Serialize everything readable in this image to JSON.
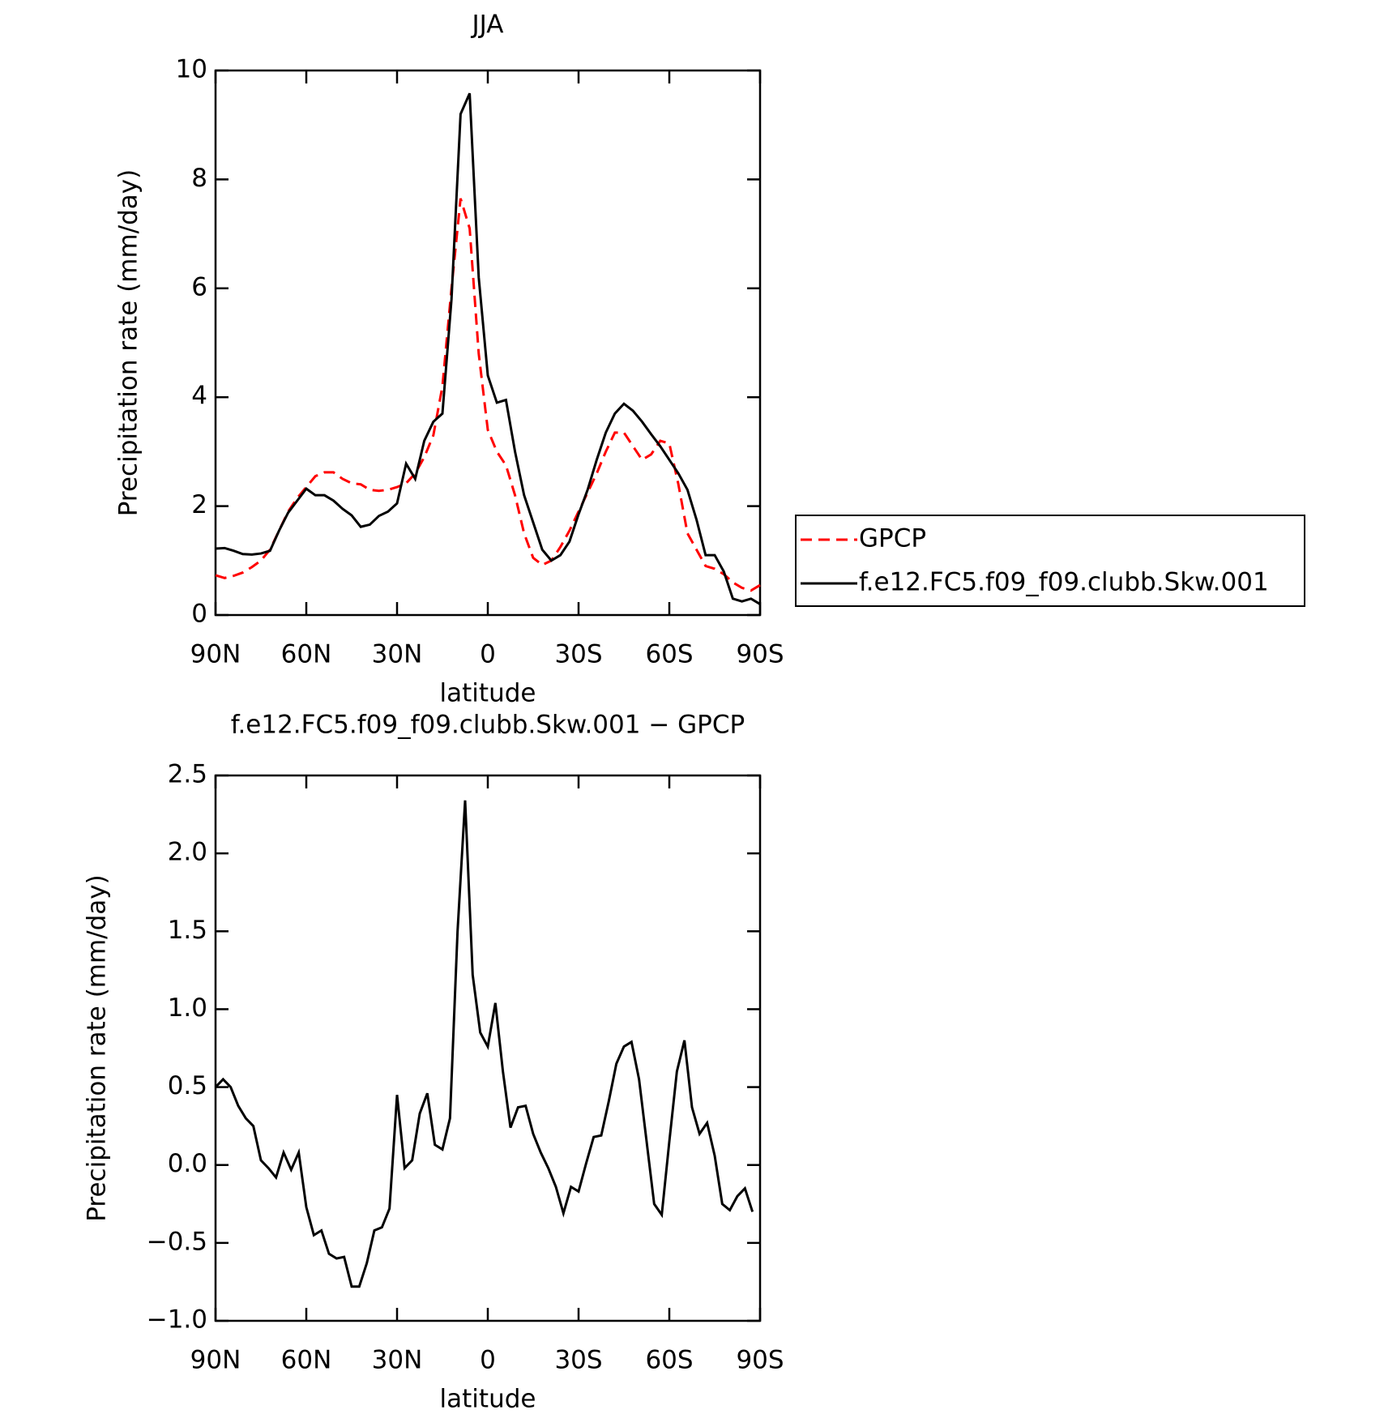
{
  "chart_data": [
    {
      "type": "line",
      "title": "JJA",
      "xlabel": "latitude",
      "ylabel": "Precipitation rate (mm/day)",
      "x": [
        90,
        87,
        84,
        81,
        78,
        75,
        72,
        69,
        66,
        63,
        60,
        57,
        54,
        51,
        48,
        45,
        42,
        39,
        36,
        33,
        30,
        27,
        24,
        21,
        18,
        15,
        12,
        9,
        6,
        3,
        0,
        -3,
        -6,
        -9,
        -12,
        -15,
        -18,
        -21,
        -24,
        -27,
        -30,
        -33,
        -36,
        -39,
        -42,
        -45,
        -48,
        -51,
        -54,
        -57,
        -60,
        -63,
        -66,
        -69,
        -72,
        -75,
        -78,
        -81,
        -84,
        -87,
        -90
      ],
      "series": [
        {
          "name": "GPCP",
          "color": "#ff0000",
          "dash": "dashed",
          "values": [
            0.73,
            0.68,
            0.72,
            0.78,
            0.88,
            1.0,
            1.2,
            1.55,
            1.9,
            2.15,
            2.35,
            2.55,
            2.62,
            2.62,
            2.5,
            2.42,
            2.4,
            2.3,
            2.28,
            2.3,
            2.35,
            2.42,
            2.6,
            2.9,
            3.3,
            4.2,
            6.0,
            7.65,
            7.1,
            4.8,
            3.4,
            3.0,
            2.75,
            2.2,
            1.5,
            1.05,
            0.92,
            1.0,
            1.25,
            1.55,
            1.9,
            2.25,
            2.6,
            3.0,
            3.35,
            3.35,
            3.1,
            2.85,
            2.95,
            3.2,
            3.15,
            2.4,
            1.5,
            1.2,
            0.9,
            0.85,
            0.75,
            0.6,
            0.5,
            0.45,
            0.55
          ]
        },
        {
          "name": "f.e12.FC5.f09_f09.clubb.Skw.001",
          "color": "#000000",
          "dash": "solid",
          "values": [
            1.22,
            1.23,
            1.18,
            1.12,
            1.11,
            1.13,
            1.18,
            1.55,
            1.88,
            2.1,
            2.32,
            2.2,
            2.2,
            2.1,
            1.95,
            1.83,
            1.62,
            1.66,
            1.82,
            1.9,
            2.05,
            2.78,
            2.5,
            3.2,
            3.55,
            3.7,
            5.8,
            9.2,
            9.58,
            6.2,
            4.4,
            3.9,
            3.95,
            3.0,
            2.2,
            1.7,
            1.2,
            1.0,
            1.1,
            1.35,
            1.85,
            2.3,
            2.85,
            3.35,
            3.7,
            3.88,
            3.75,
            3.55,
            3.32,
            3.1,
            2.85,
            2.6,
            2.3,
            1.75,
            1.1,
            1.1,
            0.8,
            0.3,
            0.25,
            0.3,
            0.2
          ]
        }
      ],
      "xlim": [
        90,
        -90
      ],
      "xticks": [
        {
          "value": 90,
          "label": "90N"
        },
        {
          "value": 60,
          "label": "60N"
        },
        {
          "value": 30,
          "label": "30N"
        },
        0,
        {
          "value": -30,
          "label": "30S"
        },
        {
          "value": -60,
          "label": "60S"
        },
        {
          "value": -90,
          "label": "90S"
        }
      ],
      "ylim": [
        0,
        10
      ],
      "yticks": [
        0,
        2,
        4,
        6,
        8,
        10
      ],
      "legend": "right"
    },
    {
      "type": "line",
      "title": "f.e12.FC5.f09_f09.clubb.Skw.001 − GPCP",
      "xlabel": "latitude",
      "ylabel": "Precipitation rate (mm/day)",
      "x": [
        90,
        87.5,
        85,
        82.5,
        80,
        77.5,
        75,
        72.5,
        70,
        67.5,
        65,
        62.5,
        60,
        57.5,
        55,
        52.5,
        50,
        47.5,
        45,
        42.5,
        40,
        37.5,
        35,
        32.5,
        30,
        27.5,
        25,
        22.5,
        20,
        17.5,
        15,
        12.5,
        10,
        7.5,
        5,
        2.5,
        0,
        -2.5,
        -5,
        -7.5,
        -10,
        -12.5,
        -15,
        -17.5,
        -20,
        -22.5,
        -25,
        -27.5,
        -30,
        -32.5,
        -35,
        -37.5,
        -40,
        -42.5,
        -45,
        -47.5,
        -50,
        -52.5,
        -55,
        -57.5,
        -60,
        -62.5,
        -65,
        -67.5,
        -70,
        -72.5,
        -75,
        -77.5,
        -80,
        -82.5,
        -85,
        -87.5
      ],
      "series": [
        {
          "color": "#000000",
          "dash": "solid",
          "values": [
            0.5,
            0.55,
            0.5,
            0.38,
            0.3,
            0.25,
            0.03,
            -0.02,
            -0.08,
            0.08,
            -0.03,
            0.08,
            -0.27,
            -0.45,
            -0.42,
            -0.57,
            -0.6,
            -0.59,
            -0.78,
            -0.78,
            -0.63,
            -0.42,
            -0.4,
            -0.28,
            0.45,
            -0.02,
            0.03,
            0.33,
            0.46,
            0.13,
            0.1,
            0.3,
            1.5,
            2.34,
            1.22,
            0.85,
            0.76,
            1.04,
            0.6,
            0.24,
            0.37,
            0.38,
            0.2,
            0.08,
            -0.02,
            -0.14,
            -0.31,
            -0.14,
            -0.17,
            0.01,
            0.18,
            0.19,
            0.41,
            0.65,
            0.76,
            0.79,
            0.55,
            0.15,
            -0.25,
            -0.32,
            0.15,
            0.6,
            0.8,
            0.37,
            0.2,
            0.27,
            0.06,
            -0.25,
            -0.29,
            -0.2,
            -0.15,
            -0.3
          ]
        }
      ],
      "xlim": [
        90,
        -90
      ],
      "xticks": [
        {
          "value": 90,
          "label": "90N"
        },
        {
          "value": 60,
          "label": "60N"
        },
        {
          "value": 30,
          "label": "30N"
        },
        0,
        {
          "value": -30,
          "label": "30S"
        },
        {
          "value": -60,
          "label": "60S"
        },
        {
          "value": -90,
          "label": "90S"
        }
      ],
      "ylim": [
        -1,
        2.5
      ],
      "yticks": [
        {
          "value": -1,
          "label": "−1.0"
        },
        {
          "value": -0.5,
          "label": "−0.5"
        },
        {
          "value": 0,
          "label": "0.0"
        },
        {
          "value": 0.5,
          "label": "0.5"
        },
        {
          "value": 1,
          "label": "1.0"
        },
        {
          "value": 1.5,
          "label": "1.5"
        },
        {
          "value": 2,
          "label": "2.0"
        },
        {
          "value": 2.5,
          "label": "2.5"
        }
      ]
    }
  ]
}
